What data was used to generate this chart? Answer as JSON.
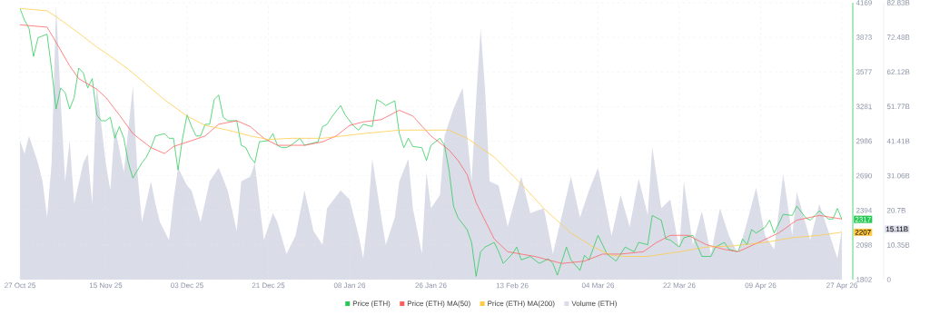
{
  "chart_data": {
    "type": "line",
    "xlim": [
      "2025-10-27",
      "2026-04-27"
    ],
    "xticks": [
      {
        "value": "2025-10-27",
        "label": "27 Oct 25"
      },
      {
        "value": "2025-11-15",
        "label": "15 Nov 25"
      },
      {
        "value": "2025-12-03",
        "label": "03 Dec 25"
      },
      {
        "value": "2025-12-21",
        "label": "21 Dec 25"
      },
      {
        "value": "2026-01-08",
        "label": "08 Jan 26"
      },
      {
        "value": "2026-01-26",
        "label": "26 Jan 26"
      },
      {
        "value": "2026-02-13",
        "label": "13 Feb 26"
      },
      {
        "value": "2026-03-04",
        "label": "04 Mar 26"
      },
      {
        "value": "2026-03-22",
        "label": "22 Mar 26"
      },
      {
        "value": "2026-04-09",
        "label": "09 Apr 26"
      },
      {
        "value": "2026-04-27",
        "label": "27 Apr 26"
      }
    ],
    "ylim": [
      1802,
      4169
    ],
    "yticks": [
      1802,
      2098,
      2394,
      2690,
      2986,
      3281,
      3577,
      3873,
      4169
    ],
    "y2lim": [
      0,
      82.83
    ],
    "y2ticks": [
      0,
      {
        "value": 10.35,
        "label": "10.35B"
      },
      {
        "value": 20.7,
        "label": "20.7B"
      },
      {
        "value": 31.06,
        "label": "31.06B"
      },
      {
        "value": 41.41,
        "label": "41.41B"
      },
      {
        "value": 51.77,
        "label": "51.77B"
      },
      {
        "value": 62.12,
        "label": "62.12B"
      },
      {
        "value": 72.48,
        "label": "72.48B"
      },
      {
        "value": 82.83,
        "label": "82.83B"
      }
    ],
    "grid": true,
    "legend": "bottom",
    "annotations": [
      {
        "text": "2317",
        "x": "2026-04-27",
        "y": 2317
      },
      {
        "text": "2207",
        "x": "2026-04-27",
        "y": 2207
      },
      "15.11B"
    ],
    "series": [
      {
        "name": "Price (ETH)",
        "color": "#26c953",
        "x": [
          "2025-10-27",
          "2025-10-28",
          "2025-10-29",
          "2025-10-30",
          "2025-10-31",
          "2025-11-02",
          "2025-11-03",
          "2025-11-04",
          "2025-11-05",
          "2025-11-06",
          "2025-11-07",
          "2025-11-08",
          "2025-11-09",
          "2025-11-10",
          "2025-11-11",
          "2025-11-12",
          "2025-11-13",
          "2025-11-14",
          "2025-11-15",
          "2025-11-16",
          "2025-11-17",
          "2025-11-18",
          "2025-11-19",
          "2025-11-20",
          "2025-11-21",
          "2025-11-23",
          "2025-11-24",
          "2025-11-25",
          "2025-11-26",
          "2025-11-28",
          "2025-11-29",
          "2025-11-30",
          "2025-12-01",
          "2025-12-02",
          "2025-12-03",
          "2025-12-04",
          "2025-12-05",
          "2025-12-06",
          "2025-12-07",
          "2025-12-08",
          "2025-12-09",
          "2025-12-10",
          "2025-12-11",
          "2025-12-12",
          "2025-12-14",
          "2025-12-15",
          "2025-12-16",
          "2025-12-17",
          "2025-12-18",
          "2025-12-19",
          "2025-12-21",
          "2025-12-22",
          "2025-12-23",
          "2025-12-24",
          "2025-12-25",
          "2025-12-26",
          "2025-12-28",
          "2025-12-29",
          "2026-01-01",
          "2026-01-02",
          "2026-01-03",
          "2026-01-04",
          "2026-01-06",
          "2026-01-07",
          "2026-01-09",
          "2026-01-10",
          "2026-01-11",
          "2026-01-13",
          "2026-01-14",
          "2026-01-15",
          "2026-01-16",
          "2026-01-18",
          "2026-01-19",
          "2026-01-20",
          "2026-01-21",
          "2026-01-22",
          "2026-01-24",
          "2026-01-25",
          "2026-01-26",
          "2026-01-28",
          "2026-01-29",
          "2026-01-30",
          "2026-01-31",
          "2026-02-01",
          "2026-02-03",
          "2026-02-04",
          "2026-02-05",
          "2026-02-06",
          "2026-02-07",
          "2026-02-09",
          "2026-02-10",
          "2026-02-11",
          "2026-02-13",
          "2026-02-14",
          "2026-02-15",
          "2026-02-17",
          "2026-02-19",
          "2026-02-21",
          "2026-02-22",
          "2026-02-23",
          "2026-02-25",
          "2026-02-26",
          "2026-02-28",
          "2026-03-01",
          "2026-03-02",
          "2026-03-04",
          "2026-03-06",
          "2026-03-08",
          "2026-03-10",
          "2026-03-12",
          "2026-03-13",
          "2026-03-15",
          "2026-03-16",
          "2026-03-18",
          "2026-03-19",
          "2026-03-20",
          "2026-03-22",
          "2026-03-23",
          "2026-03-25",
          "2026-03-27",
          "2026-03-29",
          "2026-03-30",
          "2026-04-01",
          "2026-04-02",
          "2026-04-04",
          "2026-04-05",
          "2026-04-06",
          "2026-04-07",
          "2026-04-08",
          "2026-04-10",
          "2026-04-11",
          "2026-04-12",
          "2026-04-14",
          "2026-04-16",
          "2026-04-17",
          "2026-04-19",
          "2026-04-20",
          "2026-04-22",
          "2026-04-24",
          "2026-04-25",
          "2026-04-26",
          "2026-04-27"
        ],
        "values": [
          4120,
          4020,
          3950,
          3710,
          3870,
          3900,
          3600,
          3260,
          3440,
          3400,
          3260,
          3360,
          3610,
          3570,
          3440,
          3520,
          3210,
          3160,
          3160,
          3190,
          3010,
          3110,
          3010,
          2800,
          2670,
          2800,
          2850,
          2930,
          3030,
          3050,
          3010,
          3010,
          2740,
          3010,
          3210,
          3110,
          3030,
          3030,
          3130,
          3130,
          3340,
          3380,
          3190,
          3160,
          3160,
          2950,
          2930,
          2850,
          2800,
          2980,
          2990,
          3050,
          2950,
          2930,
          2930,
          2950,
          3010,
          2950,
          2980,
          3110,
          3130,
          3190,
          3290,
          3210,
          3110,
          3080,
          3130,
          3110,
          3340,
          3320,
          3290,
          3330,
          3050,
          2930,
          3010,
          2940,
          2930,
          2820,
          2950,
          3010,
          2950,
          2740,
          2430,
          2330,
          2230,
          2120,
          1830,
          2040,
          2080,
          2120,
          2040,
          1940,
          2020,
          2080,
          1970,
          2000,
          1940,
          1980,
          1940,
          1840,
          2080,
          1970,
          1880,
          2010,
          1970,
          2180,
          2020,
          1960,
          2080,
          2040,
          2120,
          2100,
          2350,
          2310,
          2150,
          2140,
          2080,
          2160,
          2180,
          2000,
          2000,
          2080,
          2120,
          2060,
          2040,
          2150,
          2100,
          2230,
          2200,
          2250,
          2310,
          2200,
          2360,
          2350,
          2430,
          2330,
          2310,
          2390,
          2320,
          2320,
          2410,
          2317
        ]
      },
      {
        "name": "Price (ETH) MA(50)",
        "color": "#ff5b5b",
        "x": [
          "2025-10-27",
          "2025-11-02",
          "2025-11-04",
          "2025-11-07",
          "2025-11-09",
          "2025-11-13",
          "2025-11-15",
          "2025-11-18",
          "2025-11-21",
          "2025-11-25",
          "2025-11-28",
          "2025-11-30",
          "2025-12-04",
          "2025-12-07",
          "2025-12-10",
          "2025-12-14",
          "2025-12-17",
          "2025-12-20",
          "2025-12-23",
          "2025-12-29",
          "2026-01-02",
          "2026-01-05",
          "2026-01-08",
          "2026-01-11",
          "2026-01-15",
          "2026-01-19",
          "2026-01-22",
          "2026-01-26",
          "2026-01-30",
          "2026-02-01",
          "2026-02-03",
          "2026-02-05",
          "2026-02-09",
          "2026-02-12",
          "2026-02-15",
          "2026-02-18",
          "2026-02-24",
          "2026-03-01",
          "2026-03-05",
          "2026-03-09",
          "2026-03-14",
          "2026-03-17",
          "2026-03-20",
          "2026-03-24",
          "2026-03-28",
          "2026-04-01",
          "2026-04-04",
          "2026-04-08",
          "2026-04-13",
          "2026-04-17",
          "2026-04-22",
          "2026-04-27"
        ],
        "values": [
          3980,
          3960,
          3830,
          3630,
          3520,
          3430,
          3360,
          3210,
          3050,
          2930,
          2880,
          2940,
          2990,
          3030,
          3130,
          3160,
          3110,
          3010,
          2950,
          2950,
          2980,
          3030,
          3120,
          3150,
          3170,
          3250,
          3200,
          3030,
          2910,
          2820,
          2700,
          2460,
          2150,
          2040,
          2020,
          2000,
          1940,
          1960,
          2020,
          2020,
          2040,
          2120,
          2180,
          2180,
          2100,
          2060,
          2040,
          2110,
          2200,
          2310,
          2350,
          2320
        ]
      },
      {
        "name": "Price (ETH) MA(200)",
        "color": "#ffc940",
        "x": [
          "2025-10-27",
          "2025-11-02",
          "2025-11-04",
          "2025-11-09",
          "2025-11-13",
          "2025-11-15",
          "2025-11-20",
          "2025-11-24",
          "2025-11-28",
          "2025-12-03",
          "2025-12-07",
          "2025-12-12",
          "2025-12-17",
          "2025-12-21",
          "2025-12-26",
          "2026-01-02",
          "2026-01-11",
          "2026-01-19",
          "2026-01-27",
          "2026-01-30",
          "2026-02-03",
          "2026-02-09",
          "2026-02-15",
          "2026-02-20",
          "2026-02-26",
          "2026-03-03",
          "2026-03-07",
          "2026-03-10",
          "2026-03-15",
          "2026-03-22",
          "2026-03-28",
          "2026-04-03",
          "2026-04-10",
          "2026-04-16",
          "2026-04-22",
          "2026-04-27"
        ],
        "values": [
          4120,
          4100,
          4050,
          3910,
          3790,
          3740,
          3600,
          3470,
          3340,
          3200,
          3120,
          3080,
          3030,
          3000,
          3010,
          3010,
          3050,
          3080,
          3080,
          3080,
          3010,
          2850,
          2620,
          2410,
          2200,
          2080,
          2010,
          2000,
          2000,
          2040,
          2080,
          2090,
          2120,
          2160,
          2180,
          2207
        ]
      },
      {
        "name": "Volume (ETH)",
        "color": "#dadde8",
        "type": "area",
        "axis": "y2",
        "x": [
          "2025-10-27",
          "2025-10-28",
          "2025-10-29",
          "2025-10-31",
          "2025-11-01",
          "2025-11-02",
          "2025-11-03",
          "2025-11-04",
          "2025-11-05",
          "2025-11-06",
          "2025-11-07",
          "2025-11-08",
          "2025-11-10",
          "2025-11-11",
          "2025-11-12",
          "2025-11-13",
          "2025-11-15",
          "2025-11-16",
          "2025-11-17",
          "2025-11-19",
          "2025-11-21",
          "2025-11-22",
          "2025-11-23",
          "2025-11-25",
          "2025-11-26",
          "2025-11-27",
          "2025-11-29",
          "2025-11-30",
          "2025-12-01",
          "2025-12-03",
          "2025-12-04",
          "2025-12-06",
          "2025-12-08",
          "2025-12-10",
          "2025-12-12",
          "2025-12-14",
          "2025-12-15",
          "2025-12-17",
          "2025-12-18",
          "2025-12-20",
          "2025-12-22",
          "2025-12-23",
          "2025-12-25",
          "2025-12-27",
          "2025-12-29",
          "2025-12-31",
          "2026-01-02",
          "2026-01-03",
          "2026-01-06",
          "2026-01-08",
          "2026-01-10",
          "2026-01-11",
          "2026-01-12",
          "2026-01-13",
          "2026-01-15",
          "2026-01-16",
          "2026-01-18",
          "2026-01-19",
          "2026-01-21",
          "2026-01-22",
          "2026-01-24",
          "2026-01-25",
          "2026-01-26",
          "2026-01-28",
          "2026-01-29",
          "2026-01-31",
          "2026-02-02",
          "2026-02-04",
          "2026-02-05",
          "2026-02-06",
          "2026-02-07",
          "2026-02-08",
          "2026-02-10",
          "2026-02-12",
          "2026-02-15",
          "2026-02-17",
          "2026-02-20",
          "2026-02-22",
          "2026-02-26",
          "2026-02-28",
          "2026-03-02",
          "2026-03-04",
          "2026-03-07",
          "2026-03-09",
          "2026-03-11",
          "2026-03-13",
          "2026-03-15",
          "2026-03-16",
          "2026-03-18",
          "2026-03-20",
          "2026-03-22",
          "2026-03-23",
          "2026-03-25",
          "2026-03-27",
          "2026-03-29",
          "2026-03-31",
          "2026-04-02",
          "2026-04-04",
          "2026-04-06",
          "2026-04-08",
          "2026-04-10",
          "2026-04-12",
          "2026-04-14",
          "2026-04-16",
          "2026-04-17",
          "2026-04-20",
          "2026-04-22",
          "2026-04-24",
          "2026-04-26",
          "2026-04-27"
        ],
        "values": [
          41.6,
          37.6,
          43.0,
          34.8,
          29.4,
          18.6,
          34.8,
          81.8,
          53.9,
          29.4,
          41.6,
          22.6,
          34.8,
          37.6,
          22.6,
          57.9,
          34.8,
          26.7,
          45.7,
          32.1,
          57.9,
          32.1,
          17.2,
          29.4,
          22.6,
          17.2,
          11.8,
          24.0,
          33.5,
          28.1,
          26.7,
          17.2,
          29.4,
          33.5,
          26.7,
          14.5,
          29.4,
          30.8,
          34.8,
          11.8,
          19.9,
          17.2,
          7.7,
          13.1,
          26.7,
          14.5,
          10.4,
          21.3,
          26.7,
          24.0,
          13.1,
          6.3,
          18.6,
          36.2,
          18.6,
          10.4,
          18.6,
          29.4,
          36.2,
          21.3,
          7.7,
          32.1,
          21.3,
          25.3,
          43.0,
          51.1,
          57.4,
          29.4,
          53.9,
          75.0,
          56.6,
          29.4,
          28.1,
          15.8,
          30.8,
          19.9,
          21.3,
          7.7,
          30.8,
          18.6,
          26.7,
          33.5,
          13.1,
          25.3,
          15.8,
          30.2,
          19.3,
          39.7,
          21.3,
          24.0,
          9.0,
          29.4,
          10.4,
          20.5,
          7.7,
          21.3,
          13.1,
          7.7,
          17.2,
          27.5,
          13.1,
          9.0,
          31.6,
          13.1,
          26.2,
          11.8,
          22.6,
          14.5,
          6.3,
          15.1
        ]
      }
    ]
  }
}
